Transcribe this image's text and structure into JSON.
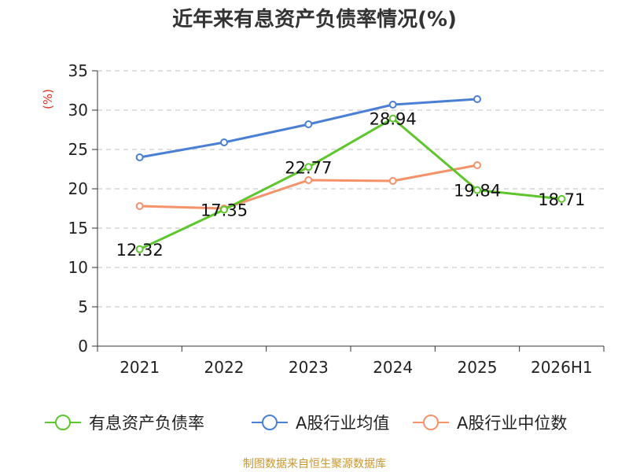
{
  "chart_data": {
    "type": "line",
    "title": "近年来有息资产负债率情况(%)",
    "ylabel": "(%)",
    "categories": [
      "2021",
      "2022",
      "2023",
      "2024",
      "2025",
      "2026H1"
    ],
    "ylim": [
      0,
      35
    ],
    "yticks": [
      0,
      5,
      10,
      15,
      20,
      25,
      30,
      35
    ],
    "grid": true,
    "legend_position": "bottom",
    "series": [
      {
        "name": "有息资产负债率",
        "color": "#5dc62c",
        "values": [
          12.32,
          17.35,
          22.77,
          28.94,
          19.84,
          18.71
        ],
        "labels": [
          "12.32",
          "17.35",
          "22.77",
          "28.94",
          "19.84",
          "18.71"
        ]
      },
      {
        "name": "A股行业均值",
        "color": "#4a7fd4",
        "values": [
          24.0,
          25.9,
          28.2,
          30.7,
          31.4,
          null
        ]
      },
      {
        "name": "A股行业中位数",
        "color": "#f4926a",
        "values": [
          17.8,
          17.5,
          21.1,
          21.0,
          23.0,
          null
        ]
      }
    ]
  },
  "footer": "制图数据来自恒生聚源数据库"
}
